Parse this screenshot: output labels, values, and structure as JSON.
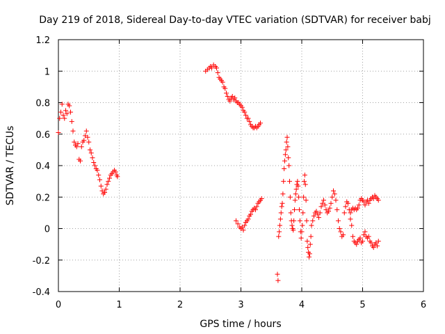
{
  "chart_data": {
    "type": "scatter",
    "title": "Day 219 of 2018, Sidereal Day-to-day VTEC variation (SDTVAR) for receiver babj",
    "xlabel": "GPS time / hours",
    "ylabel": "SDTVAR / TECUs",
    "xlim": [
      0,
      6
    ],
    "ylim": [
      -0.4,
      1.2
    ],
    "x_ticks": [
      0,
      1,
      2,
      3,
      4,
      5,
      6
    ],
    "x_tick_labels": [
      "0",
      "1",
      "2",
      "3",
      "4",
      "5",
      "6"
    ],
    "y_ticks": [
      -0.4,
      -0.2,
      0,
      0.2,
      0.4,
      0.6,
      0.8,
      1,
      1.2
    ],
    "y_tick_labels": [
      "-0.4",
      "-0.2",
      "0",
      "0.2",
      "0.4",
      "0.6",
      "0.8",
      "1",
      "1.2"
    ],
    "grid": true,
    "marker": "+",
    "color": "#ff0000",
    "series": [
      {
        "name": "segment-1",
        "points": [
          [
            0.0,
            0.61
          ],
          [
            0.02,
            0.7
          ],
          [
            0.04,
            0.74
          ],
          [
            0.06,
            0.79
          ],
          [
            0.08,
            0.72
          ],
          [
            0.1,
            0.7
          ],
          [
            0.12,
            0.75
          ],
          [
            0.14,
            0.73
          ],
          [
            0.16,
            0.79
          ],
          [
            0.18,
            0.78
          ],
          [
            0.2,
            0.74
          ],
          [
            0.22,
            0.68
          ],
          [
            0.24,
            0.62
          ],
          [
            0.26,
            0.55
          ],
          [
            0.28,
            0.53
          ],
          [
            0.3,
            0.52
          ],
          [
            0.32,
            0.54
          ],
          [
            0.34,
            0.44
          ],
          [
            0.36,
            0.43
          ],
          [
            0.38,
            0.52
          ],
          [
            0.4,
            0.55
          ],
          [
            0.42,
            0.56
          ],
          [
            0.44,
            0.59
          ],
          [
            0.46,
            0.62
          ],
          [
            0.48,
            0.58
          ],
          [
            0.5,
            0.55
          ],
          [
            0.52,
            0.5
          ],
          [
            0.54,
            0.48
          ],
          [
            0.56,
            0.45
          ],
          [
            0.58,
            0.42
          ],
          [
            0.6,
            0.4
          ],
          [
            0.62,
            0.38
          ],
          [
            0.64,
            0.37
          ],
          [
            0.66,
            0.34
          ],
          [
            0.68,
            0.31
          ],
          [
            0.7,
            0.27
          ],
          [
            0.72,
            0.24
          ],
          [
            0.74,
            0.22
          ],
          [
            0.76,
            0.23
          ],
          [
            0.78,
            0.25
          ],
          [
            0.8,
            0.28
          ],
          [
            0.82,
            0.3
          ],
          [
            0.84,
            0.32
          ],
          [
            0.86,
            0.34
          ],
          [
            0.88,
            0.35
          ],
          [
            0.9,
            0.36
          ],
          [
            0.92,
            0.37
          ],
          [
            0.94,
            0.36
          ],
          [
            0.96,
            0.34
          ],
          [
            0.97,
            0.33
          ]
        ]
      },
      {
        "name": "segment-2",
        "points": [
          [
            2.42,
            1.0
          ],
          [
            2.45,
            1.01
          ],
          [
            2.48,
            1.02
          ],
          [
            2.5,
            1.03
          ],
          [
            2.52,
            1.02
          ],
          [
            2.55,
            1.04
          ],
          [
            2.58,
            1.03
          ],
          [
            2.6,
            1.02
          ],
          [
            2.62,
            0.99
          ],
          [
            2.64,
            0.96
          ],
          [
            2.66,
            0.95
          ],
          [
            2.68,
            0.94
          ],
          [
            2.7,
            0.93
          ],
          [
            2.72,
            0.9
          ],
          [
            2.74,
            0.89
          ],
          [
            2.76,
            0.86
          ],
          [
            2.78,
            0.84
          ],
          [
            2.8,
            0.82
          ],
          [
            2.82,
            0.81
          ],
          [
            2.84,
            0.83
          ],
          [
            2.86,
            0.84
          ],
          [
            2.88,
            0.82
          ],
          [
            2.9,
            0.83
          ],
          [
            2.92,
            0.81
          ],
          [
            2.94,
            0.8
          ],
          [
            2.96,
            0.8
          ],
          [
            2.98,
            0.79
          ],
          [
            3.0,
            0.78
          ],
          [
            3.02,
            0.77
          ],
          [
            3.04,
            0.75
          ],
          [
            3.06,
            0.74
          ],
          [
            3.08,
            0.72
          ],
          [
            3.1,
            0.7
          ],
          [
            3.12,
            0.7
          ],
          [
            3.14,
            0.68
          ],
          [
            3.16,
            0.66
          ],
          [
            3.18,
            0.65
          ],
          [
            3.2,
            0.64
          ],
          [
            3.22,
            0.64
          ],
          [
            3.24,
            0.65
          ],
          [
            3.26,
            0.64
          ],
          [
            3.28,
            0.65
          ],
          [
            3.3,
            0.66
          ],
          [
            3.32,
            0.67
          ]
        ]
      },
      {
        "name": "segment-3",
        "points": [
          [
            2.92,
            0.05
          ],
          [
            2.95,
            0.03
          ],
          [
            2.98,
            0.01
          ],
          [
            3.0,
            0.0
          ],
          [
            3.02,
            0.01
          ],
          [
            3.04,
            -0.01
          ],
          [
            3.06,
            0.02
          ],
          [
            3.08,
            0.04
          ],
          [
            3.1,
            0.05
          ],
          [
            3.12,
            0.06
          ],
          [
            3.14,
            0.08
          ],
          [
            3.16,
            0.09
          ],
          [
            3.18,
            0.11
          ],
          [
            3.2,
            0.12
          ],
          [
            3.22,
            0.13
          ],
          [
            3.24,
            0.12
          ],
          [
            3.26,
            0.14
          ],
          [
            3.28,
            0.16
          ],
          [
            3.3,
            0.17
          ],
          [
            3.32,
            0.18
          ],
          [
            3.34,
            0.19
          ]
        ]
      },
      {
        "name": "segment-4",
        "points": [
          [
            3.6,
            -0.29
          ],
          [
            3.61,
            -0.33
          ],
          [
            3.62,
            -0.05
          ],
          [
            3.63,
            -0.02
          ],
          [
            3.64,
            0.02
          ],
          [
            3.65,
            0.06
          ],
          [
            3.66,
            0.1
          ],
          [
            3.67,
            0.14
          ],
          [
            3.68,
            0.16
          ],
          [
            3.69,
            0.22
          ],
          [
            3.7,
            0.3
          ],
          [
            3.71,
            0.38
          ],
          [
            3.72,
            0.43
          ],
          [
            3.73,
            0.47
          ],
          [
            3.74,
            0.5
          ],
          [
            3.75,
            0.55
          ],
          [
            3.76,
            0.58
          ],
          [
            3.77,
            0.52
          ],
          [
            3.78,
            0.45
          ],
          [
            3.79,
            0.4
          ],
          [
            3.8,
            0.3
          ],
          [
            3.81,
            0.2
          ],
          [
            3.82,
            0.1
          ],
          [
            3.83,
            0.05
          ],
          [
            3.84,
            0.02
          ],
          [
            3.85,
            0.0
          ],
          [
            3.86,
            -0.01
          ],
          [
            3.87,
            0.05
          ],
          [
            3.88,
            0.12
          ],
          [
            3.89,
            0.18
          ],
          [
            3.9,
            0.22
          ],
          [
            3.91,
            0.25
          ],
          [
            3.92,
            0.28
          ],
          [
            3.93,
            0.3
          ],
          [
            3.94,
            0.27
          ],
          [
            3.95,
            0.2
          ],
          [
            3.96,
            0.12
          ],
          [
            3.97,
            0.05
          ],
          [
            3.98,
            -0.02
          ],
          [
            3.99,
            -0.06
          ],
          [
            4.0,
            -0.02
          ],
          [
            4.01,
            0.02
          ],
          [
            4.02,
            0.1
          ],
          [
            4.03,
            0.2
          ],
          [
            4.04,
            0.3
          ],
          [
            4.05,
            0.34
          ],
          [
            4.06,
            0.28
          ],
          [
            4.07,
            0.18
          ],
          [
            4.08,
            0.05
          ],
          [
            4.09,
            -0.08
          ],
          [
            4.1,
            -0.12
          ],
          [
            4.11,
            -0.15
          ],
          [
            4.12,
            -0.18
          ],
          [
            4.13,
            -0.16
          ],
          [
            4.14,
            -0.1
          ],
          [
            4.15,
            -0.05
          ]
        ]
      },
      {
        "name": "segment-5",
        "points": [
          [
            4.16,
            0.02
          ],
          [
            4.18,
            0.05
          ],
          [
            4.2,
            0.08
          ],
          [
            4.22,
            0.1
          ],
          [
            4.24,
            0.11
          ],
          [
            4.26,
            0.09
          ],
          [
            4.28,
            0.07
          ],
          [
            4.3,
            0.1
          ],
          [
            4.32,
            0.14
          ],
          [
            4.34,
            0.16
          ],
          [
            4.36,
            0.18
          ],
          [
            4.38,
            0.15
          ],
          [
            4.4,
            0.12
          ],
          [
            4.42,
            0.1
          ],
          [
            4.44,
            0.11
          ],
          [
            4.46,
            0.13
          ],
          [
            4.48,
            0.16
          ],
          [
            4.5,
            0.2
          ],
          [
            4.52,
            0.24
          ],
          [
            4.54,
            0.22
          ],
          [
            4.56,
            0.18
          ],
          [
            4.58,
            0.12
          ],
          [
            4.6,
            0.05
          ],
          [
            4.62,
            0.0
          ],
          [
            4.64,
            -0.02
          ],
          [
            4.66,
            -0.05
          ],
          [
            4.68,
            -0.04
          ],
          [
            4.7,
            0.1
          ],
          [
            4.72,
            0.14
          ],
          [
            4.74,
            0.17
          ],
          [
            4.76,
            0.16
          ],
          [
            4.78,
            0.12
          ],
          [
            4.8,
            0.06
          ],
          [
            4.82,
            0.02
          ],
          [
            4.84,
            -0.05
          ],
          [
            4.86,
            -0.08
          ],
          [
            4.88,
            -0.09
          ],
          [
            4.9,
            -0.1
          ],
          [
            4.92,
            -0.08
          ],
          [
            4.94,
            -0.07
          ],
          [
            4.96,
            -0.06
          ],
          [
            4.98,
            -0.09
          ],
          [
            5.0,
            -0.08
          ],
          [
            5.02,
            -0.04
          ],
          [
            5.04,
            -0.02
          ],
          [
            5.06,
            -0.05
          ],
          [
            5.08,
            -0.06
          ],
          [
            5.1,
            -0.05
          ],
          [
            5.12,
            -0.08
          ],
          [
            5.14,
            -0.09
          ],
          [
            5.16,
            -0.11
          ],
          [
            5.18,
            -0.12
          ],
          [
            5.2,
            -0.1
          ],
          [
            5.22,
            -0.09
          ],
          [
            5.24,
            -0.11
          ],
          [
            5.26,
            -0.08
          ]
        ]
      },
      {
        "name": "segment-6",
        "points": [
          [
            4.8,
            0.1
          ],
          [
            4.82,
            0.12
          ],
          [
            4.84,
            0.13
          ],
          [
            4.86,
            0.12
          ],
          [
            4.88,
            0.13
          ],
          [
            4.9,
            0.12
          ],
          [
            4.92,
            0.13
          ],
          [
            4.94,
            0.15
          ],
          [
            4.96,
            0.18
          ],
          [
            4.98,
            0.19
          ],
          [
            5.0,
            0.18
          ],
          [
            5.02,
            0.17
          ],
          [
            5.04,
            0.15
          ],
          [
            5.06,
            0.17
          ],
          [
            5.08,
            0.18
          ],
          [
            5.1,
            0.16
          ],
          [
            5.12,
            0.18
          ],
          [
            5.14,
            0.19
          ],
          [
            5.16,
            0.2
          ],
          [
            5.18,
            0.19
          ],
          [
            5.2,
            0.21
          ],
          [
            5.22,
            0.2
          ],
          [
            5.24,
            0.19
          ],
          [
            5.26,
            0.18
          ]
        ]
      }
    ]
  }
}
